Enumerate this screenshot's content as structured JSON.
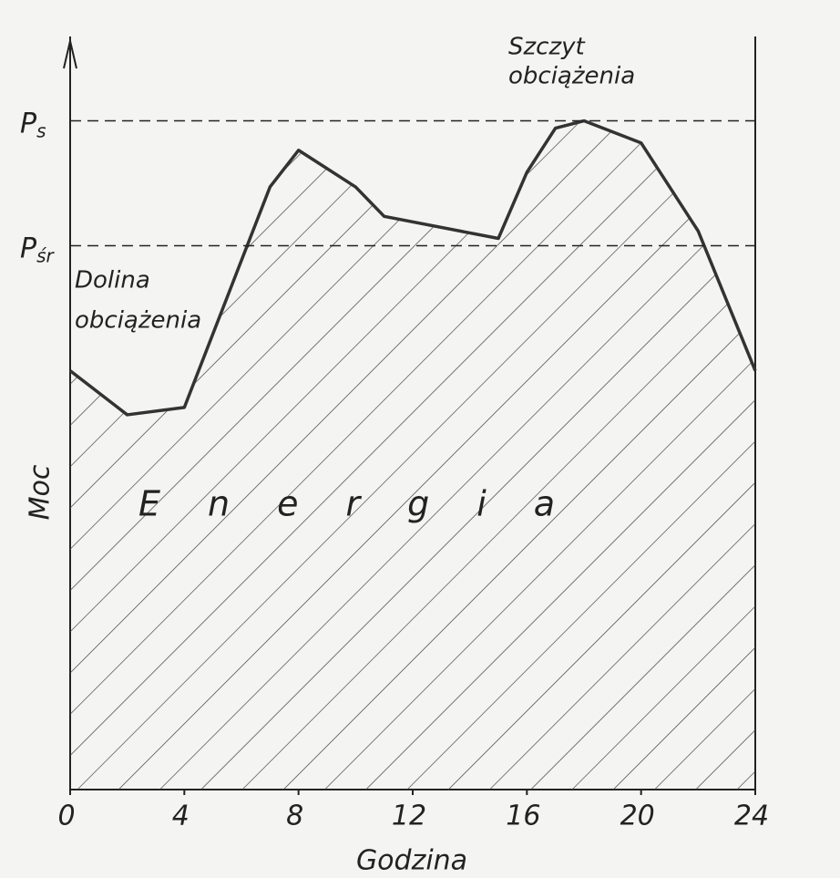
{
  "chart_data": {
    "type": "area",
    "x": [
      0,
      2,
      4,
      7,
      8,
      10,
      11,
      15,
      16,
      17,
      18,
      20,
      22,
      24
    ],
    "values": [
      57,
      51,
      52,
      82,
      87,
      82,
      78,
      75,
      84,
      90,
      91,
      88,
      76,
      57
    ],
    "color": "#333333",
    "xlim": [
      0,
      24
    ],
    "xticks": [
      0,
      4,
      8,
      12,
      16,
      20,
      24
    ],
    "ylim": [
      0,
      100
    ],
    "x_label": "Godzina",
    "y_label": "Moc",
    "reference_lines": [
      {
        "label": "P",
        "subscript": "s",
        "value": 91
      },
      {
        "label": "P",
        "subscript": "śr",
        "value": 74
      }
    ],
    "annotations": [
      {
        "lines": [
          "Szczyt",
          "obciążenia"
        ]
      },
      {
        "lines": [
          "Dolina",
          "obciążenia"
        ]
      },
      {
        "lines": [
          "Energia"
        ]
      }
    ]
  }
}
